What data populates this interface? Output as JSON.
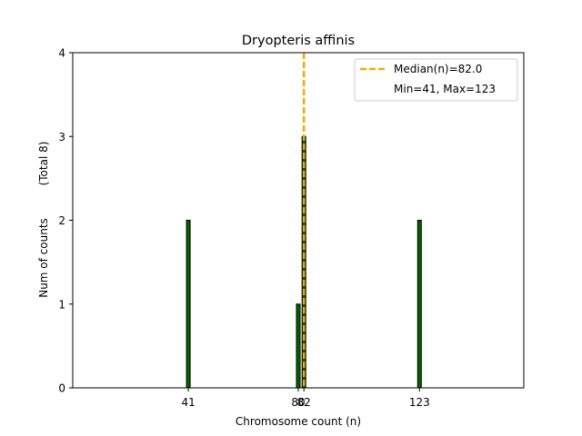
{
  "chart_data": {
    "type": "bar",
    "title": "Dryopteris affinis",
    "xlabel": "Chromosome count (n)",
    "ylabel": "Num of counts",
    "ylabel_secondary": "(Total 8)",
    "xlim": [
      0,
      160
    ],
    "ylim": [
      0,
      4
    ],
    "x_ticks": [
      41,
      80,
      82,
      123
    ],
    "y_ticks": [
      0,
      1,
      2,
      3,
      4
    ],
    "bars": [
      {
        "x": 41,
        "count": 2
      },
      {
        "x": 80,
        "count": 1
      },
      {
        "x": 82,
        "count": 3
      },
      {
        "x": 123,
        "count": 2
      }
    ],
    "bar_color": "#006400",
    "bar_edge_color": "#000000",
    "median": 82.0,
    "median_color": "#FFA500",
    "legend": {
      "placement": "top-right",
      "entries": [
        "Median(n)=82.0",
        "Min=41, Max=123"
      ]
    },
    "grid": false
  }
}
